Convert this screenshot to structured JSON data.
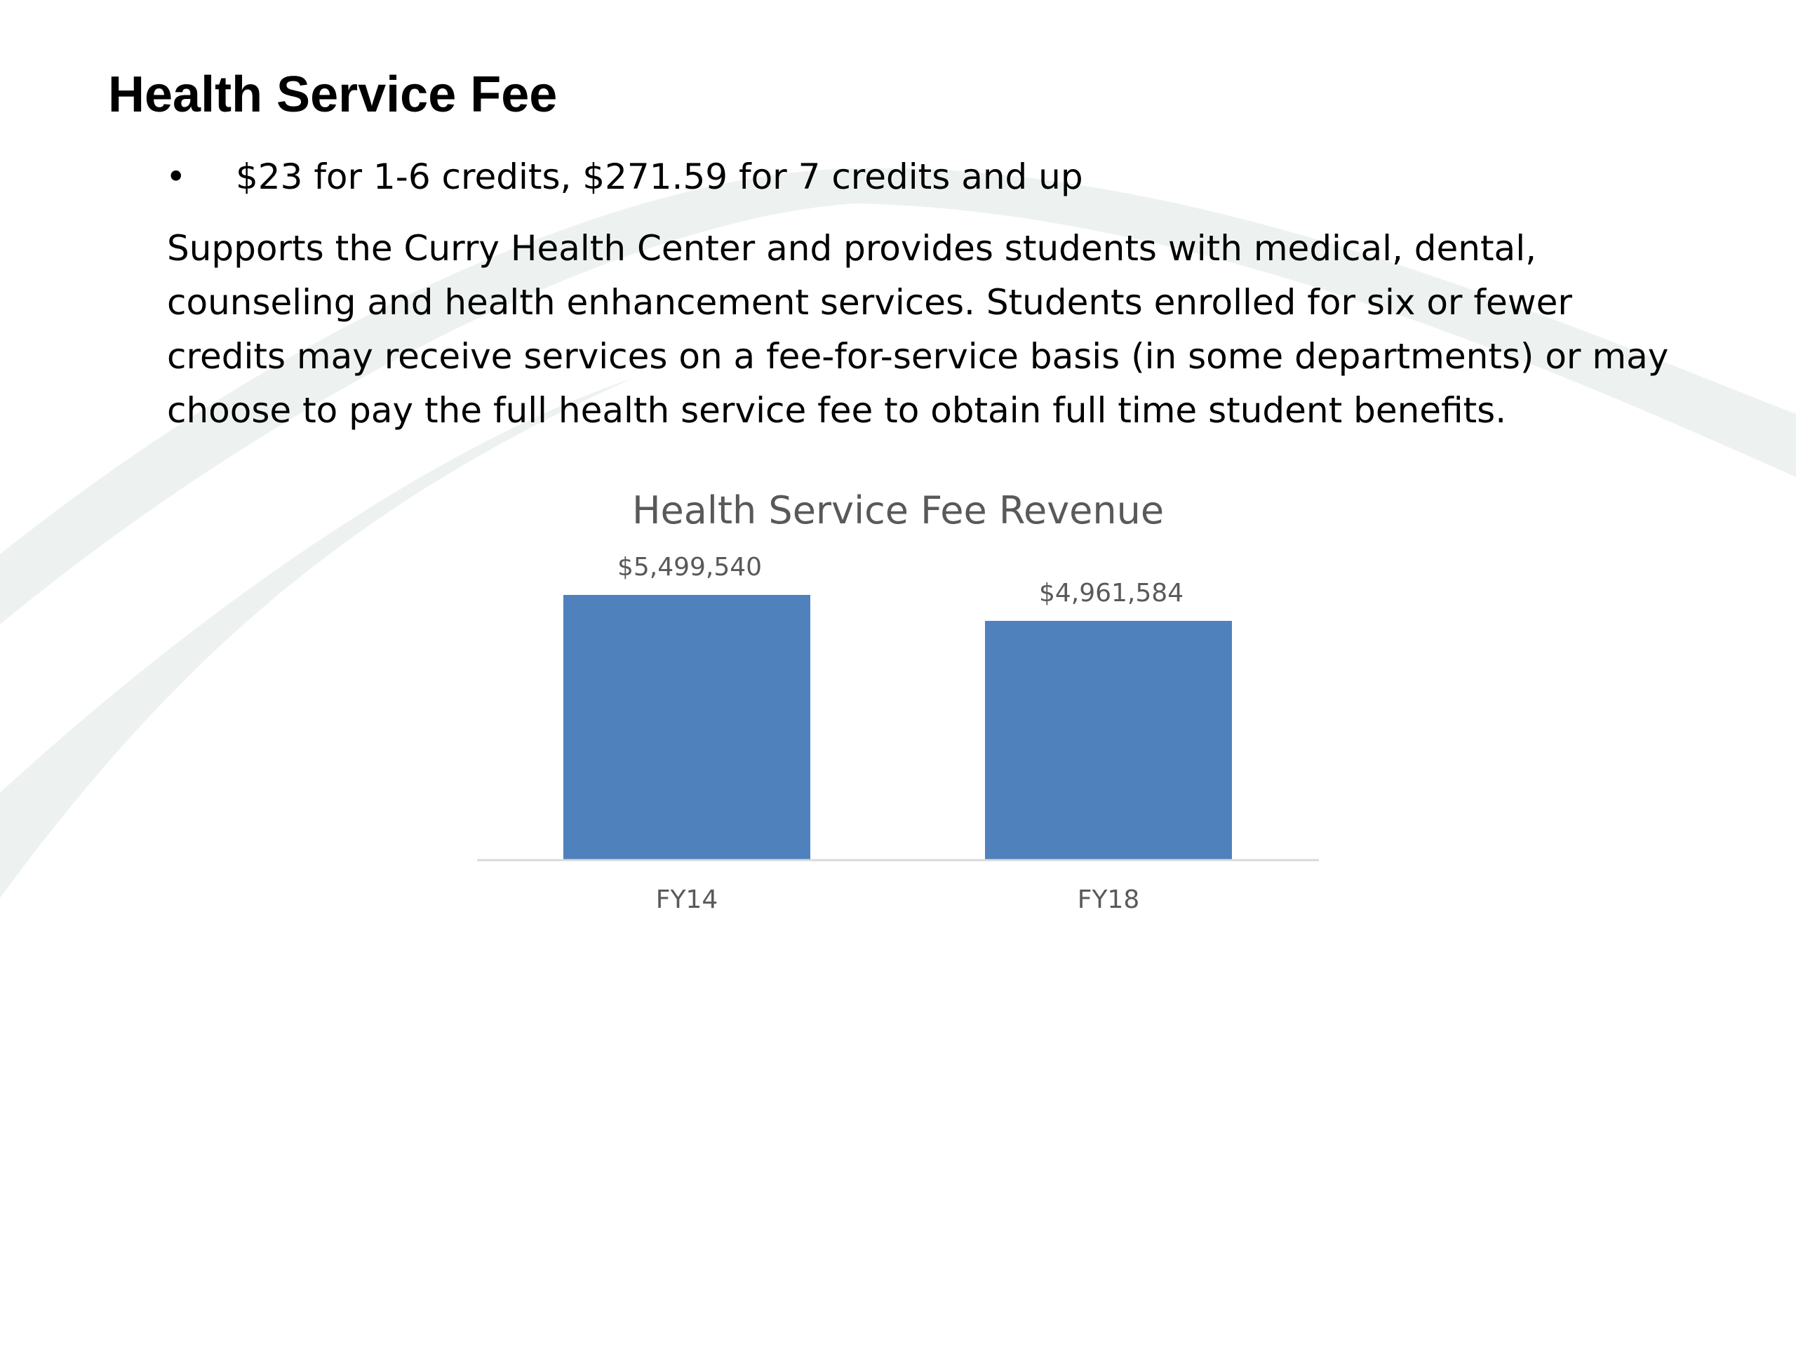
{
  "slide": {
    "title": "Health Service Fee",
    "bullet": "$23 for 1-6 credits, $271.59 for 7 credits and up",
    "bullet_marker": "•",
    "body": "Supports the Curry Health Center and provides students with medical, dental, counseling and health enhancement services. Students enrolled for six or fewer credits may receive services on a fee-for-service basis (in some departments) or may choose to pay the full health service fee to obtain full time student benefits."
  },
  "colors": {
    "bar": "#4F81BD",
    "axis": "#D9D9D9",
    "chart_text": "#595959",
    "background_swoosh": "#EDF2F1"
  },
  "chart_data": {
    "type": "bar",
    "title": "Health Service Fee Revenue",
    "categories": [
      "FY14",
      "FY18"
    ],
    "values": [
      5499540,
      4961584
    ],
    "data_labels": [
      "$5,499,540",
      "$4,961,584"
    ],
    "xlabel": "",
    "ylabel": "",
    "ylim": [
      0,
      5499540
    ],
    "grid": false,
    "legend": "none"
  }
}
